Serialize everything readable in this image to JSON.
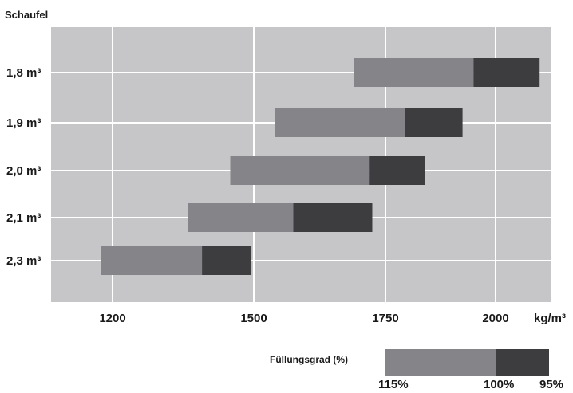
{
  "chart_data": {
    "type": "bar",
    "subtype": "floating-stacked-horizontal",
    "y_axis_title": "Schaufel",
    "x_unit": "kg/m³",
    "x_ticks": [
      1200,
      1500,
      1750,
      2000
    ],
    "grid": true,
    "categories": [
      "1,8 m³",
      "1,9 m³",
      "2,0 m³",
      "2,1 m³",
      "2,3 m³"
    ],
    "series": [
      {
        "name": "115% – 100%",
        "color": "#858589",
        "ranges": [
          [
            1690,
            1950
          ],
          [
            1540,
            1795
          ],
          [
            1450,
            1720
          ],
          [
            1360,
            1575
          ],
          [
            1175,
            1390
          ]
        ]
      },
      {
        "name": "100% – 95%",
        "color": "#3d3d3f",
        "ranges": [
          [
            1950,
            2100
          ],
          [
            1795,
            1925
          ],
          [
            1720,
            1840
          ],
          [
            1575,
            1725
          ],
          [
            1390,
            1495
          ]
        ]
      }
    ],
    "plot_background": "#c6c6c8",
    "legend": {
      "title": "Füllungsgrad (%)",
      "labels": [
        "115%",
        "100%",
        "95%"
      ]
    }
  }
}
